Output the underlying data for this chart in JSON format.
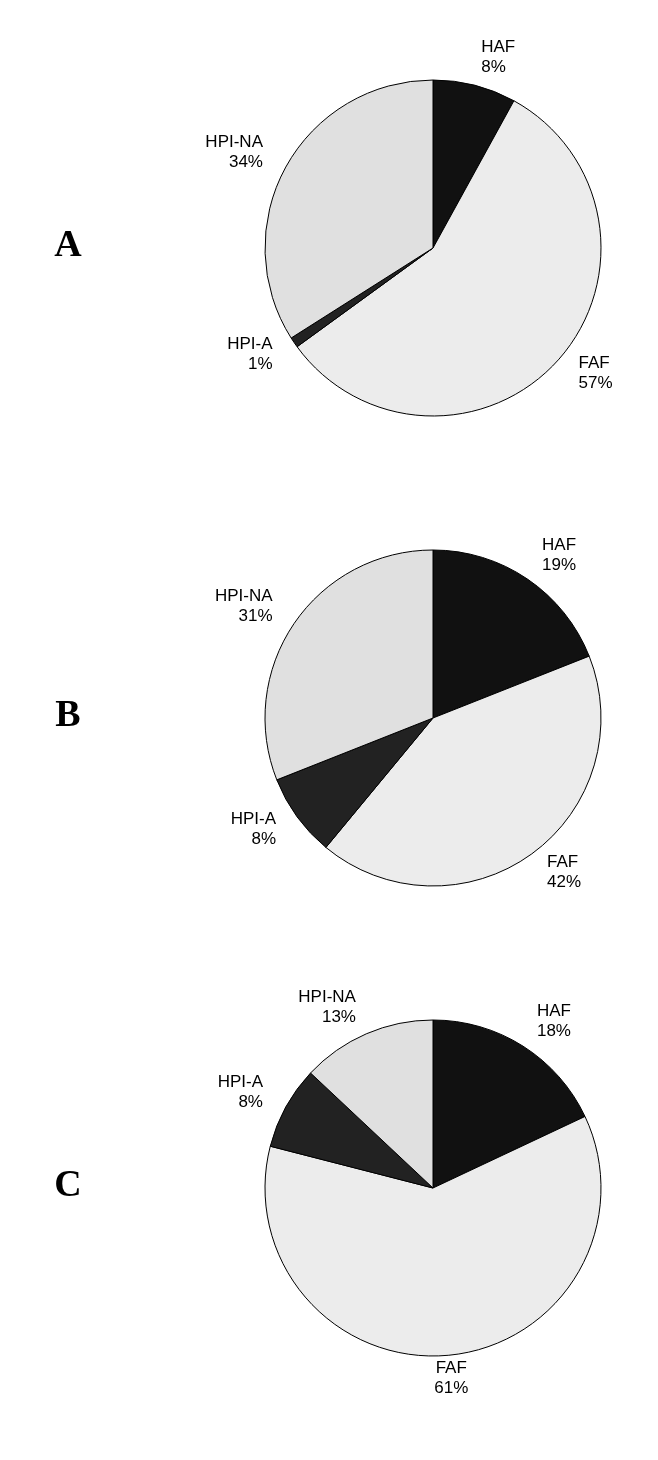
{
  "chart_data": [
    {
      "type": "pie",
      "title": "A",
      "categories": [
        "HAF",
        "FAF",
        "HPI-A",
        "HPI-NA"
      ],
      "values": [
        8,
        57,
        1,
        34
      ],
      "value_labels": [
        "8%",
        "57%",
        "1%",
        "34%"
      ],
      "colors": [
        "#111111",
        "#ececec",
        "#222222",
        "#e0e0e0"
      ]
    },
    {
      "type": "pie",
      "title": "B",
      "categories": [
        "HAF",
        "FAF",
        "HPI-A",
        "HPI-NA"
      ],
      "values": [
        19,
        42,
        8,
        31
      ],
      "value_labels": [
        "19%",
        "42%",
        "8%",
        "31%"
      ],
      "colors": [
        "#111111",
        "#ececec",
        "#222222",
        "#e0e0e0"
      ]
    },
    {
      "type": "pie",
      "title": "C",
      "categories": [
        "HAF",
        "FAF",
        "HPI-A",
        "HPI-NA"
      ],
      "values": [
        18,
        61,
        8,
        13
      ],
      "value_labels": [
        "18%",
        "61%",
        "8%",
        "13%"
      ],
      "colors": [
        "#111111",
        "#ececec",
        "#222222",
        "#e0e0e0"
      ]
    }
  ]
}
